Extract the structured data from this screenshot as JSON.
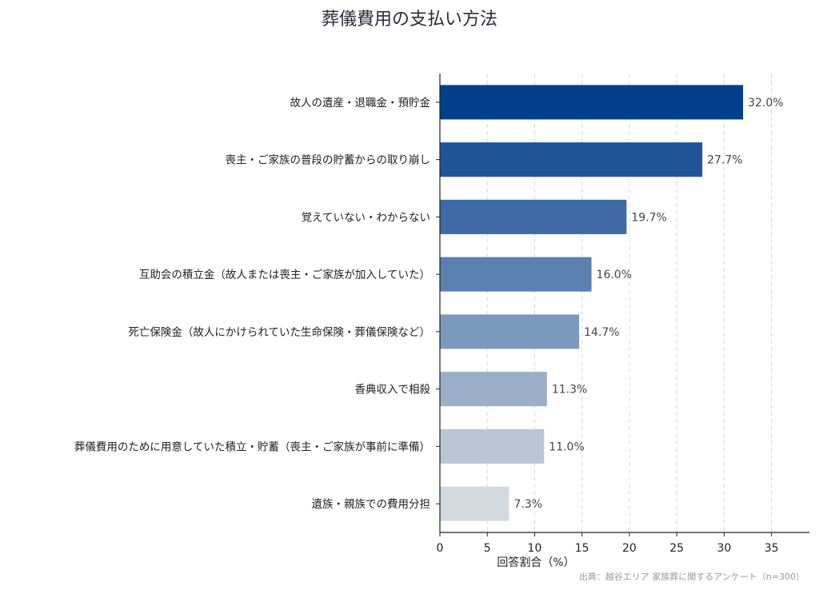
{
  "chart_data": {
    "type": "bar",
    "orientation": "horizontal",
    "title": "葬儀費用の支払い方法",
    "xlabel": "回答割合（%）",
    "ylabel": "",
    "xlim": [
      0,
      39
    ],
    "xticks": [
      0,
      5,
      10,
      15,
      20,
      25,
      30,
      35
    ],
    "grid": "x-dashed",
    "categories": [
      "故人の遺産・退職金・預貯金",
      "喪主・ご家族の普段の貯蓄からの取り崩し",
      "覚えていない・わからない",
      "互助会の積立金（故人または喪主・ご家族が加入していた）",
      "死亡保険金（故人にかけられていた生命保険・葬儀保険など）",
      "香典収入で相殺",
      "葬儀費用のために用意していた積立・貯蓄（喪主・ご家族が事前に準備）",
      "遺族・親族での費用分担"
    ],
    "values": [
      32.0,
      27.7,
      19.7,
      16.0,
      14.7,
      11.3,
      11.0,
      7.3
    ],
    "value_labels": [
      "32.0%",
      "27.7%",
      "19.7%",
      "16.0%",
      "14.7%",
      "11.3%",
      "11.0%",
      "7.3%"
    ],
    "colors": [
      "#023e8a",
      "#1f5499",
      "#3e6ba6",
      "#5a80b0",
      "#7b99bd",
      "#9bb0c8",
      "#b8c6d4",
      "#d3dadf"
    ],
    "source": "出典：越谷エリア 家族葬に関するアンケート（n=300）"
  }
}
